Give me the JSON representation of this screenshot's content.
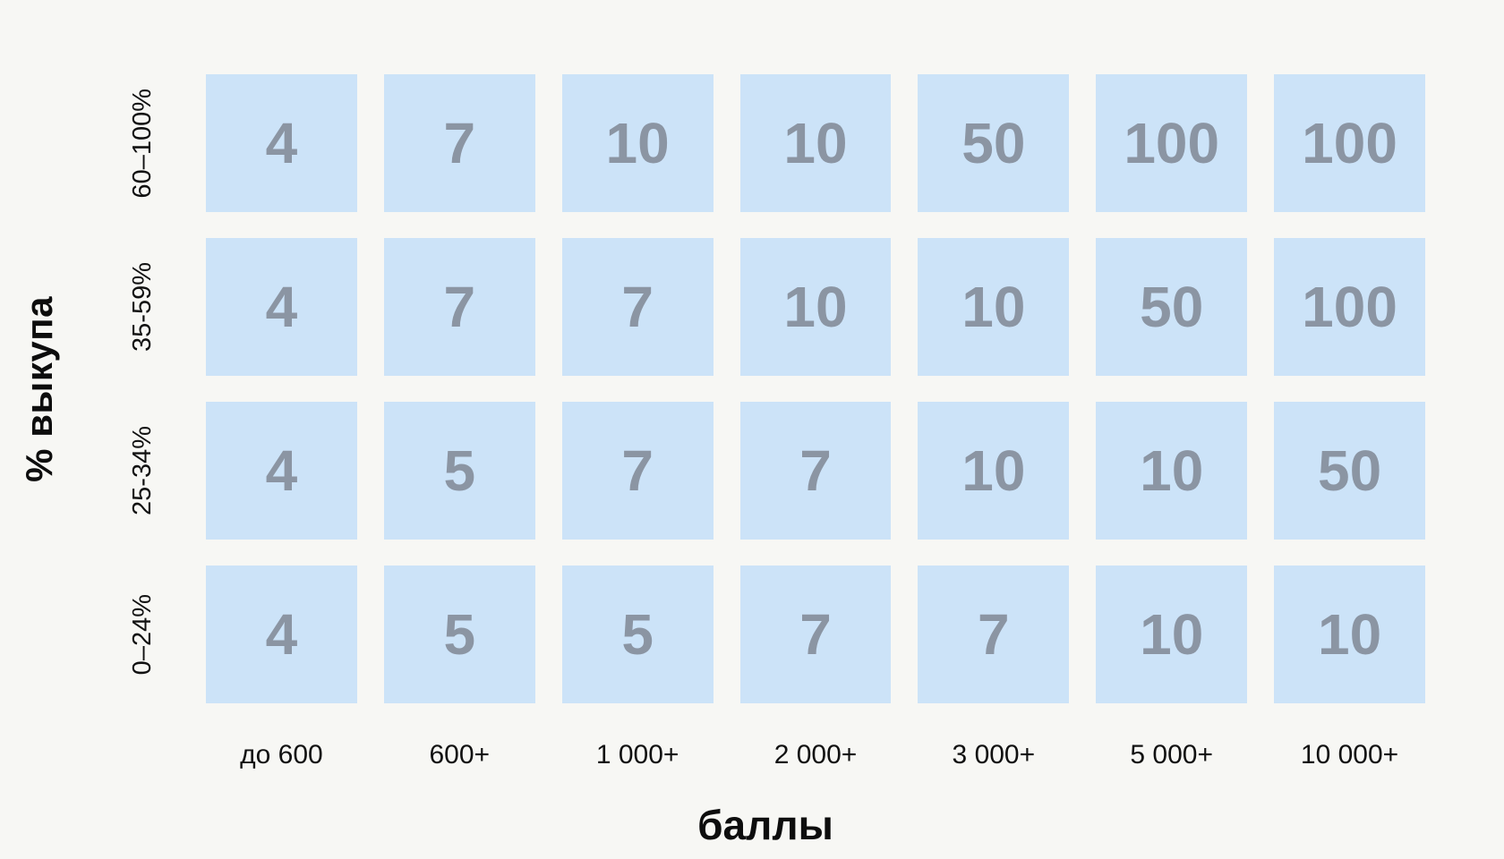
{
  "chart_data": {
    "type": "heatmap",
    "title": "",
    "xlabel": "баллы",
    "ylabel": "% выкупа",
    "x_categories": [
      "до 600",
      "600+",
      "1 000+",
      "2 000+",
      "3 000+",
      "5 000+",
      "10 000+"
    ],
    "y_categories": [
      "60–100%",
      "35-59%",
      "25-34%",
      "0–24%"
    ],
    "rows": [
      [
        4,
        7,
        10,
        10,
        50,
        100,
        100
      ],
      [
        4,
        7,
        7,
        10,
        10,
        50,
        100
      ],
      [
        4,
        5,
        7,
        7,
        10,
        10,
        50
      ],
      [
        4,
        5,
        5,
        7,
        7,
        10,
        10
      ]
    ],
    "legend": "none",
    "grid": "off",
    "colors": {
      "cell_bg": "#cce3f8",
      "cell_value": "#8b95a3",
      "label_text": "#111111",
      "page_bg": "#f7f7f4"
    }
  }
}
